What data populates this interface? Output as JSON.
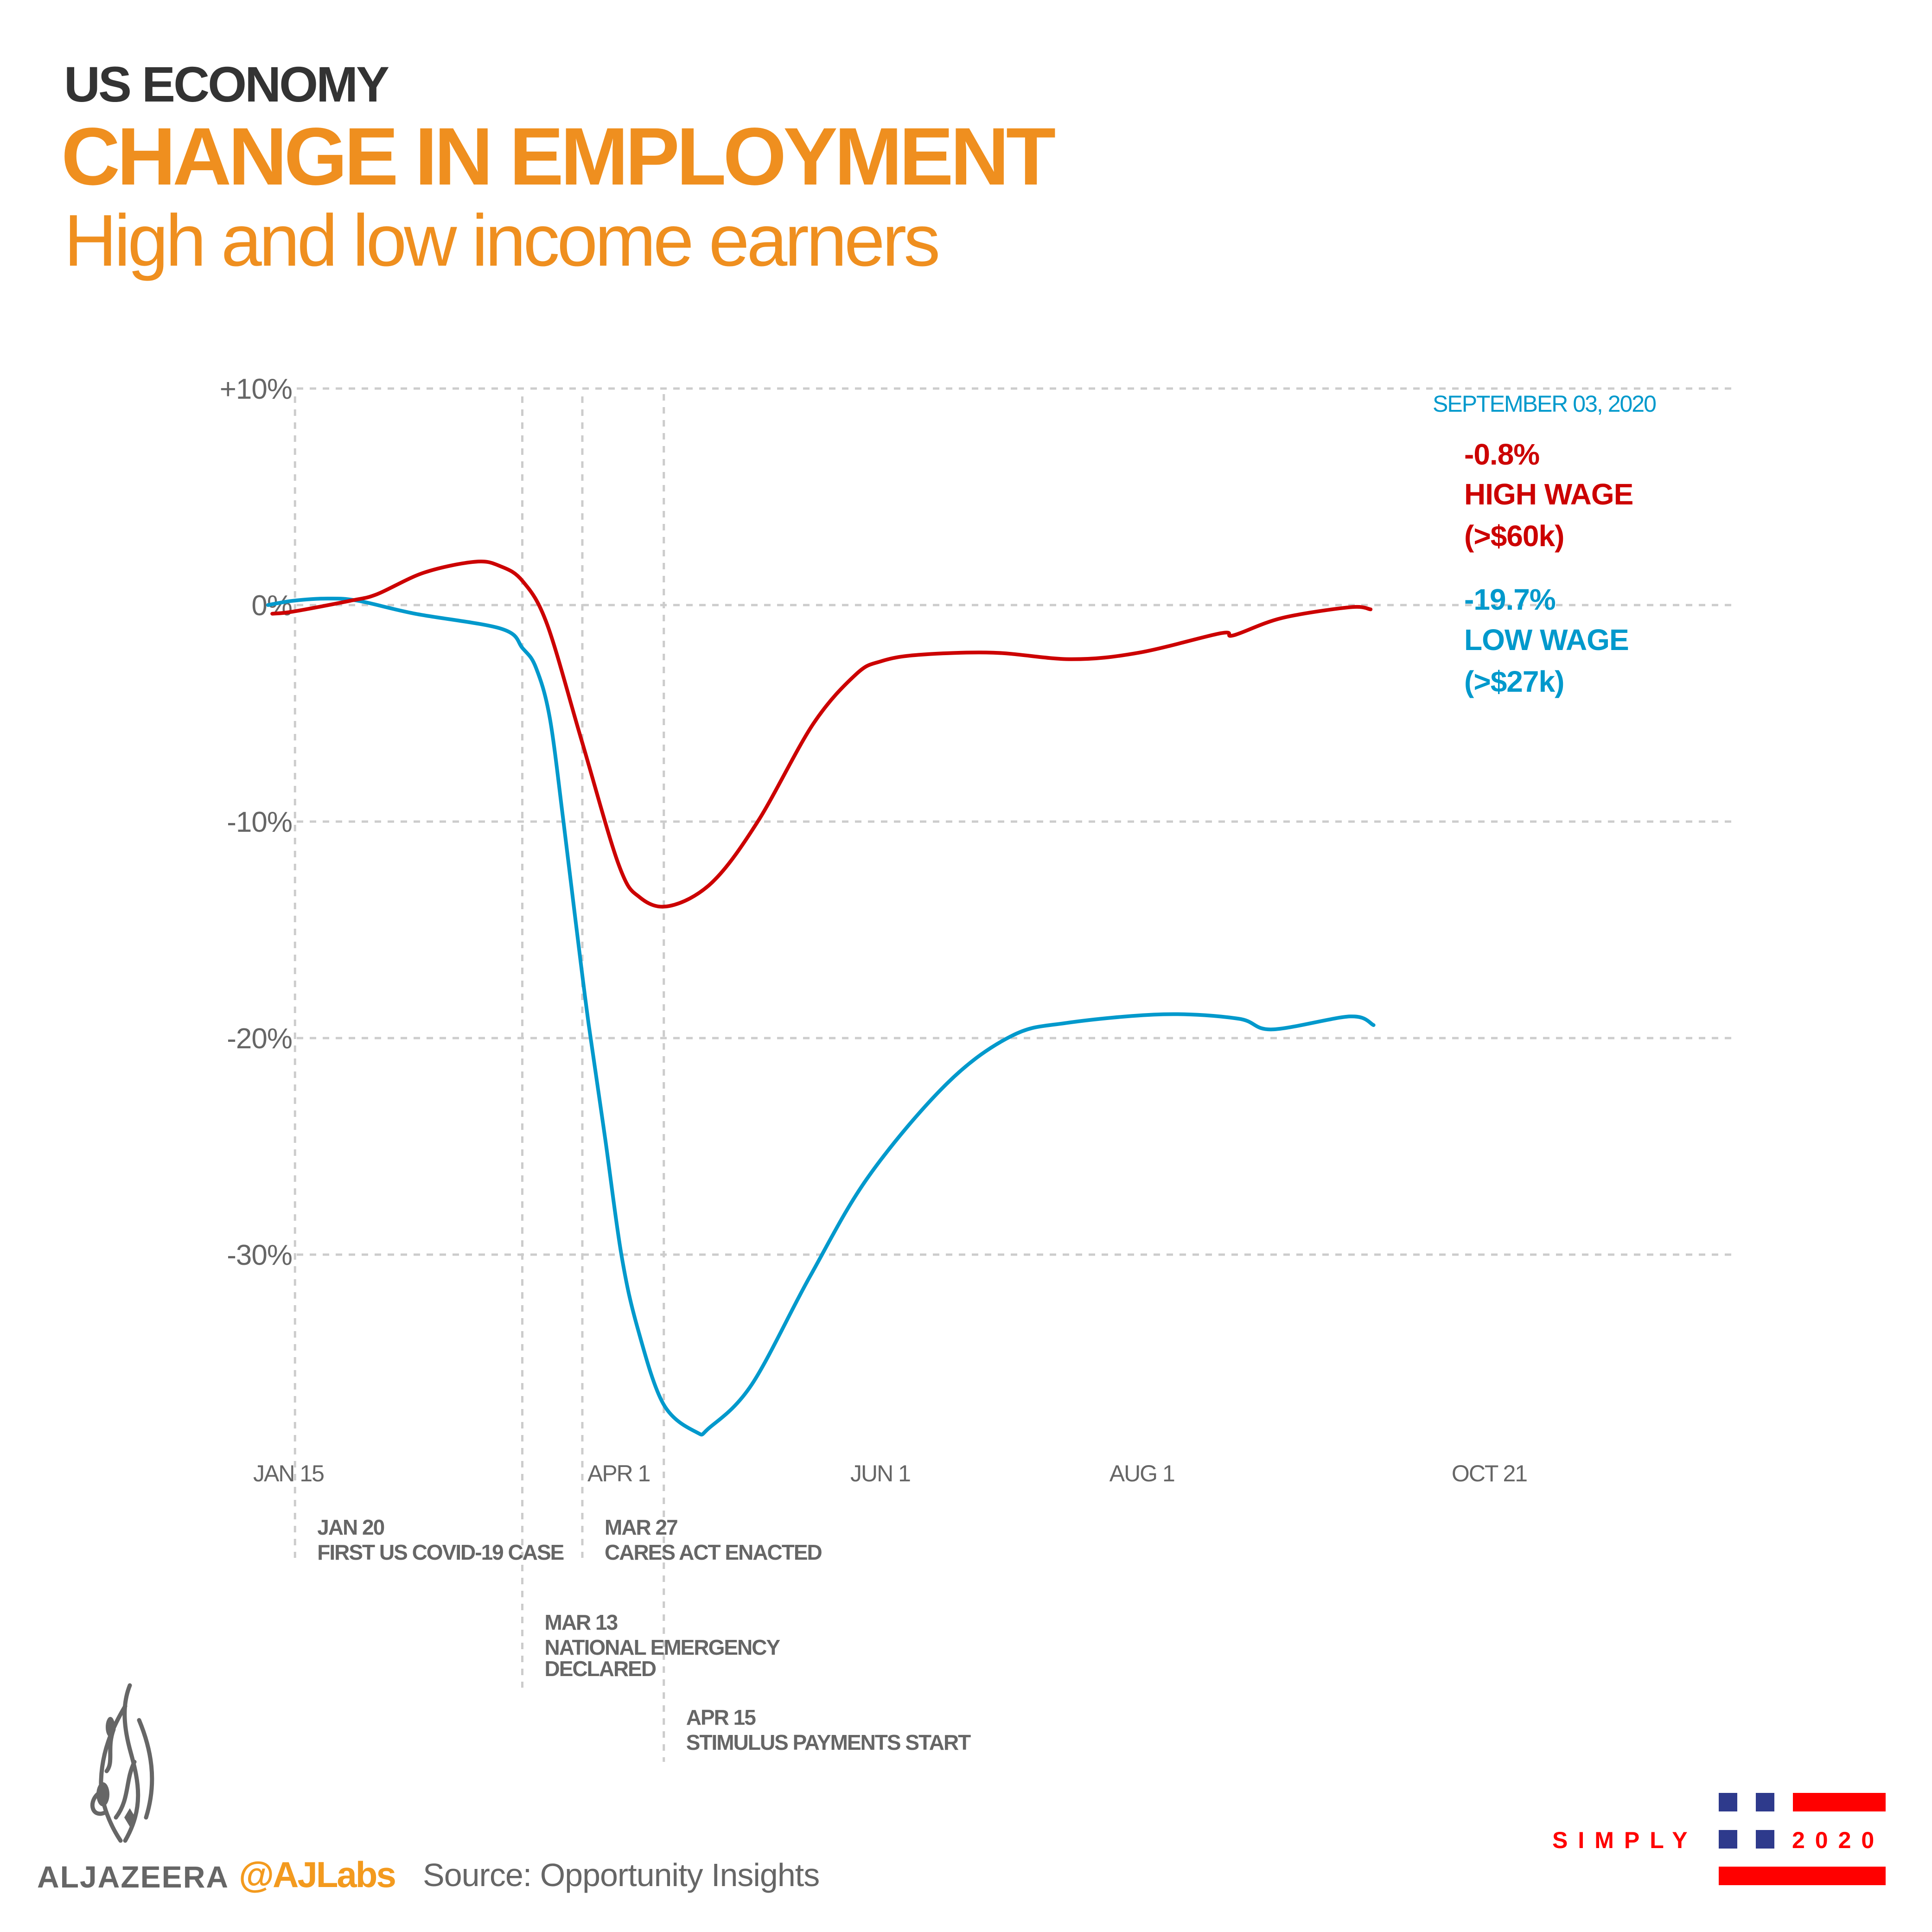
{
  "header": {
    "kicker": "US ECONOMY",
    "title": "CHANGE IN EMPLOYMENT",
    "subtitle": "High and low income earners"
  },
  "colors": {
    "title": "#ef8f1f",
    "kicker": "#333333",
    "high_wage": "#cc0000",
    "low_wage": "#0099cc",
    "axis_text": "#666666",
    "grid": "#cccccc",
    "handle": "#f39a1e",
    "simply_red": "#ff0000",
    "simply_blue": "#2e3a8c"
  },
  "annotation": {
    "date": "SEPTEMBER 03, 2020",
    "high": {
      "value": "-0.8%",
      "label": "HIGH WAGE",
      "range": "(>$60k)"
    },
    "low": {
      "value": "-19.7%",
      "label": "LOW WAGE",
      "range": "(>$27k)"
    }
  },
  "chart_data": {
    "type": "line",
    "title": "CHANGE IN EMPLOYMENT",
    "subtitle": "High and low income earners",
    "xlabel": "",
    "ylabel": "",
    "x_unit": "days since Jan 15, 2020",
    "xlim": [
      -2,
      340
    ],
    "ylim": [
      -40,
      10
    ],
    "grid": true,
    "y_ticks": [
      {
        "value": 10,
        "label": "+10%"
      },
      {
        "value": 0,
        "label": "0%"
      },
      {
        "value": -10,
        "label": "-10%"
      },
      {
        "value": -20,
        "label": "-20%"
      },
      {
        "value": -30,
        "label": "-30%"
      }
    ],
    "x_ticks": [
      {
        "value": 0,
        "label": "JAN 15"
      },
      {
        "value": 77,
        "label": "APR 1"
      },
      {
        "value": 138,
        "label": "JUN 1"
      },
      {
        "value": 199,
        "label": "AUG 1"
      },
      {
        "value": 280,
        "label": "OCT 21"
      }
    ],
    "events": [
      {
        "day": 5,
        "date": "JAN 20",
        "desc": [
          "FIRST US COVID-19 CASE"
        ],
        "row": 0
      },
      {
        "day": 58,
        "date": "MAR 13",
        "desc": [
          "NATIONAL EMERGENCY",
          "DECLARED"
        ],
        "row": 1
      },
      {
        "day": 72,
        "date": "MAR 27",
        "desc": [
          "CARES ACT ENACTED"
        ],
        "row": 0
      },
      {
        "day": 91,
        "date": "APR 15",
        "desc": [
          "STIMULUS PAYMENTS START"
        ],
        "row": 2
      }
    ],
    "series": [
      {
        "name": "HIGH WAGE (>$60k)",
        "color": "#cc0000",
        "x": [
          -0.3,
          4.6,
          17.9,
          24.1,
          35.1,
          47,
          52.8,
          58.1,
          63.8,
          71.9,
          80.5,
          85.4,
          92.3,
          102.3,
          112.9,
          125.8,
          135.8,
          141.6,
          150.4,
          167.8,
          186.1,
          201.8,
          220.9,
          223.8,
          235.1,
          251,
          255.8
        ],
        "y": [
          -0.4,
          -0.3,
          0.2,
          0.5,
          1.5,
          2.0,
          1.8,
          1.1,
          -0.9,
          -6.3,
          -12.0,
          -13.5,
          -13.9,
          -12.8,
          -10.0,
          -5.5,
          -3.2,
          -2.6,
          -2.3,
          -2.2,
          -2.5,
          -2.2,
          -1.3,
          -1.4,
          -0.6,
          -0.1,
          -0.2
        ]
      },
      {
        "name": "LOW WAGE (>$27k)",
        "color": "#0099cc",
        "x": [
          -1.3,
          4.6,
          12.6,
          19.7,
          33,
          53.2,
          58.1,
          61.2,
          64.4,
          67.6,
          70.5,
          73.5,
          77.3,
          81.1,
          84.9,
          90.9,
          98.6,
          101.6,
          111.5,
          125.1,
          138.7,
          157,
          172.1,
          184.9,
          207.5,
          224.9,
          232.8,
          251,
          256.5
        ],
        "y": [
          0.0,
          0.2,
          0.3,
          0.2,
          -0.4,
          -1.1,
          -2.0,
          -2.9,
          -5.2,
          -10.0,
          -14.7,
          -19.4,
          -24.6,
          -30.0,
          -33.4,
          -36.9,
          -38.2,
          -38.0,
          -36.0,
          -31.0,
          -26.4,
          -22.1,
          -19.9,
          -19.3,
          -18.9,
          -19.1,
          -19.6,
          -19.0,
          -19.4
        ]
      }
    ]
  },
  "footer": {
    "brand": "ALJAZEERA",
    "handle": "@AJLabs",
    "source": "Source: Opportunity Insights",
    "logo_icon": "aljazeera-calligraphy-logo",
    "partner_left": "SIMPLY",
    "partner_right": "2020"
  }
}
